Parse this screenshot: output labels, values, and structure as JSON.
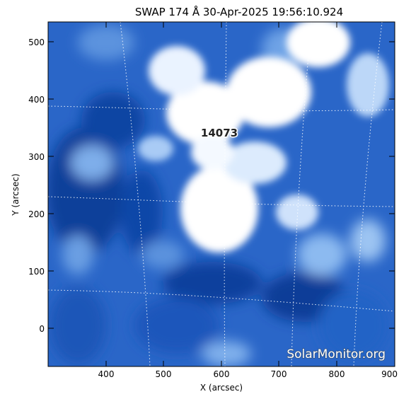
{
  "image": {
    "title": "SWAP 174 Å 30-Apr-2025 19:56:10.924",
    "xlabel": "X (arcsec)",
    "ylabel": "Y (arcsec)",
    "xticks": [
      "400",
      "500",
      "600",
      "700",
      "800",
      "900"
    ],
    "yticks": [
      "500",
      "400",
      "300",
      "200",
      "100",
      "0"
    ],
    "region_label": "14073",
    "watermark": "SolarMonitor.org",
    "colors": {
      "dark": "#0a3f9e",
      "mid": "#2f6fd0",
      "light": "#8fbbef",
      "saturated": "#ffffff"
    }
  }
}
